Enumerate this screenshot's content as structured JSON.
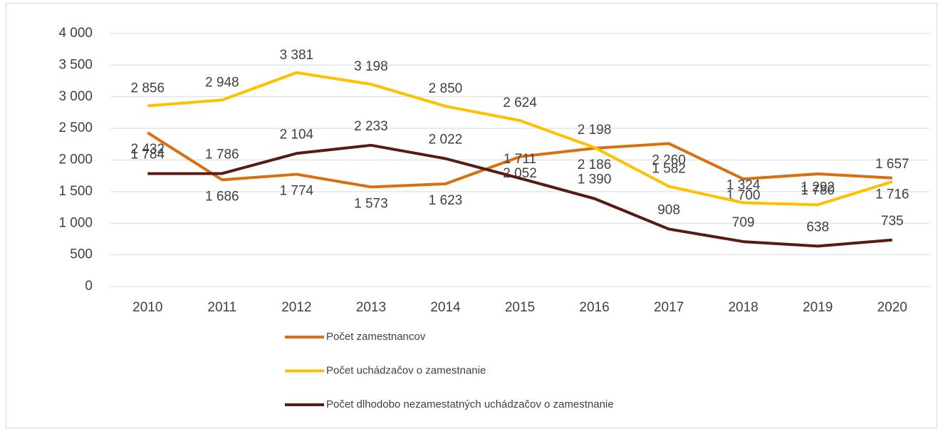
{
  "chart_data": {
    "type": "line",
    "categories": [
      "2010",
      "2011",
      "2012",
      "2013",
      "2014",
      "2015",
      "2016",
      "2017",
      "2018",
      "2019",
      "2020"
    ],
    "ylim": [
      0,
      4000
    ],
    "yticks": [
      0,
      500,
      {
        "value": 1000,
        "label": "1 000"
      },
      {
        "value": 1500,
        "label": "1 500"
      },
      {
        "value": 2000,
        "label": "2 000"
      },
      {
        "value": 2500,
        "label": "2 500"
      },
      {
        "value": 3000,
        "label": "3 000"
      },
      {
        "value": 3500,
        "label": "3 500"
      },
      {
        "value": 4000,
        "label": "4 000"
      }
    ],
    "grid": true,
    "legend": "bottom",
    "series": [
      {
        "name": "Počet zamestnancov",
        "color": "#D9700F",
        "values": [
          2432,
          1686,
          1774,
          1573,
          1623,
          2052,
          2186,
          2260,
          1700,
          1780,
          1716
        ],
        "value_labels": [
          "2 432",
          "1 686",
          "1 774",
          "1 573",
          "1 623",
          "2 052",
          "2 186",
          "2 260",
          "1 700",
          "1 780",
          "1 716"
        ]
      },
      {
        "name": "Počet uchádzačov o zamestnanie",
        "color": "#FFC000",
        "values": [
          2856,
          2948,
          3381,
          3198,
          2850,
          2624,
          2198,
          1582,
          1324,
          1292,
          1657
        ],
        "value_labels": [
          "2 856",
          "2 948",
          "3 381",
          "3 198",
          "2 850",
          "2 624",
          "2 198",
          "1 582",
          "1 324",
          "1 292",
          "1 657"
        ]
      },
      {
        "name": "Počet dlhodobo nezamestatných uchádzačov o zamestnanie",
        "color": "#5A1A14",
        "values": [
          1784,
          1786,
          2104,
          2233,
          2022,
          1711,
          1390,
          908,
          709,
          638,
          735
        ],
        "value_labels": [
          "1 784",
          "1 786",
          "2 104",
          "2 233",
          "2 022",
          "1 711",
          "1 390",
          "908",
          "709",
          "638",
          "735"
        ]
      }
    ]
  }
}
